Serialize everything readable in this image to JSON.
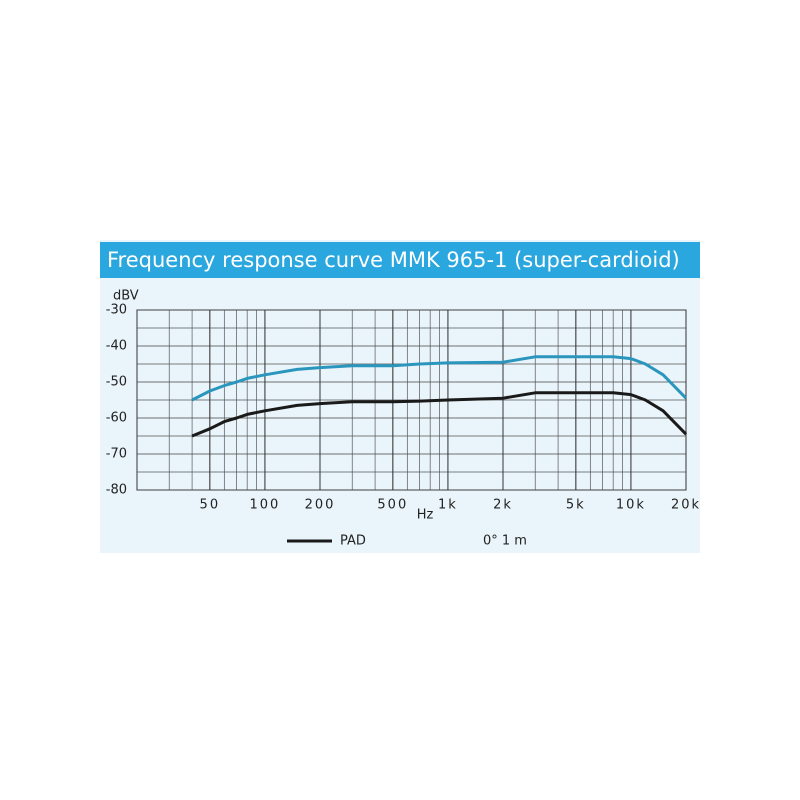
{
  "chart_data": {
    "type": "line",
    "title": "Frequency response curve MMK 965-1 (super-cardioid)",
    "y_label": "dBV",
    "x_label": "Hz",
    "annotation": "0°  1 m",
    "log_x": true,
    "grid": true,
    "xlim": [
      20,
      20000
    ],
    "ylim": [
      -80,
      -30
    ],
    "xticks": [
      50,
      100,
      200,
      500,
      {
        "value": 1000,
        "label": "1k"
      },
      {
        "value": 2000,
        "label": "2k"
      },
      {
        "value": 5000,
        "label": "5k"
      },
      {
        "value": 10000,
        "label": "10k"
      },
      {
        "value": 20000,
        "label": "20k"
      }
    ],
    "yticks": [
      -30,
      -40,
      -50,
      -60,
      -70,
      -80
    ],
    "x": [
      40,
      50,
      60,
      70,
      80,
      100,
      150,
      200,
      300,
      500,
      700,
      1000,
      2000,
      3000,
      5000,
      8000,
      10000,
      12000,
      15000,
      20000
    ],
    "series": [
      {
        "color": "#2a96bd",
        "values": [
          -55,
          -52.5,
          -51,
          -50,
          -49,
          -48,
          -46.5,
          -46,
          -45.5,
          -45.5,
          -45,
          -44.7,
          -44.5,
          -43,
          -43,
          -43,
          -43.5,
          -45,
          -48,
          -54.5
        ]
      },
      {
        "name": "PAD",
        "color": "#1a1a1a",
        "values": [
          -65,
          -63,
          -61,
          -60,
          -59,
          -58,
          -56.5,
          -56,
          -55.5,
          -55.5,
          -55.3,
          -55,
          -54.5,
          -53,
          -53,
          -53,
          -53.5,
          -55,
          -58,
          -64.5
        ]
      }
    ]
  }
}
